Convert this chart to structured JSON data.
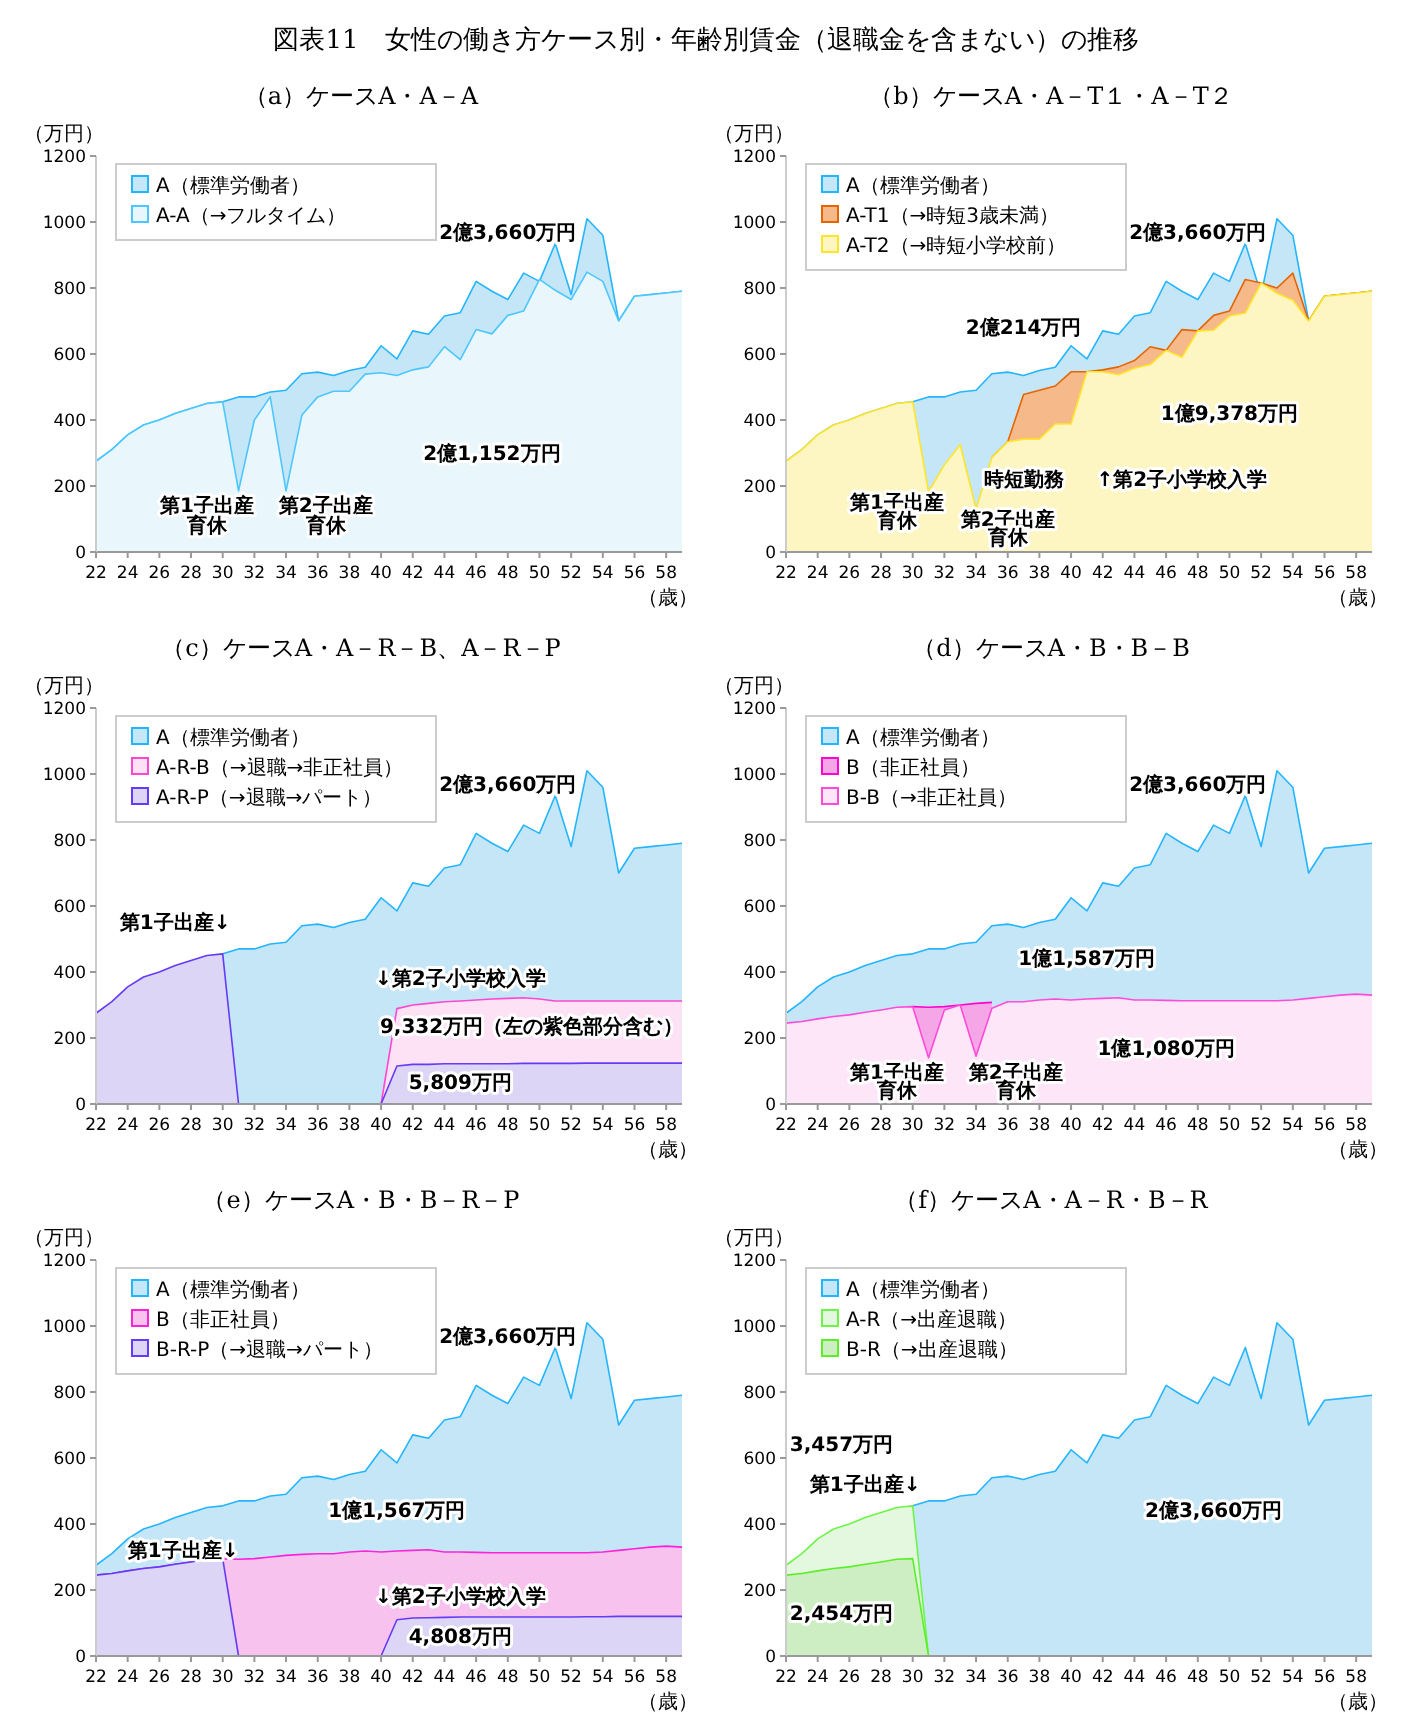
{
  "chart_data": [
    {
      "type": "area",
      "title": "（a）ケースA・A－A",
      "xlabel": "（歳）",
      "ylabel": "（万円）",
      "legend": "top left",
      "xlim": [
        22,
        59
      ],
      "ylim": [
        0,
        1200
      ],
      "xticks": [
        22,
        24,
        26,
        28,
        30,
        32,
        34,
        36,
        38,
        40,
        42,
        44,
        46,
        48,
        50,
        52,
        54,
        56,
        58
      ],
      "yticks": [
        0,
        200,
        400,
        600,
        800,
        1000,
        1200
      ],
      "x": [
        22,
        23,
        24,
        25,
        26,
        27,
        28,
        29,
        30,
        31,
        32,
        33,
        34,
        35,
        36,
        37,
        38,
        39,
        40,
        41,
        42,
        43,
        44,
        45,
        46,
        47,
        48,
        49,
        50,
        51,
        52,
        53,
        54,
        55,
        56,
        57,
        58,
        59
      ],
      "series": [
        {
          "name": "A（標準労働者）",
          "color": "#c5e6f7",
          "values": [
            275,
            310,
            355,
            385,
            400,
            420,
            435,
            450,
            455,
            470,
            470,
            485,
            490,
            540,
            545,
            535,
            550,
            560,
            625,
            585,
            670,
            660,
            715,
            725,
            820,
            790,
            765,
            845,
            820,
            935,
            780,
            1010,
            960,
            700,
            775,
            780,
            785,
            790
          ]
        },
        {
          "name": "A-A（→フルタイム）",
          "color": "#e9f6fc",
          "values": [
            275,
            310,
            355,
            385,
            400,
            420,
            435,
            450,
            455,
            185,
            400,
            470,
            185,
            415,
            470,
            487,
            487,
            539,
            543,
            535,
            552,
            561,
            622,
            583,
            674,
            661,
            717,
            730,
            826,
            793,
            765,
            848,
            820,
            700,
            775,
            780,
            785,
            790
          ]
        }
      ],
      "annotations": [
        "図表11　女性の働き方ケース別・年齢別賃金（退職金を含まない）の推移",
        "2億3,660万円",
        "2億1,152万円",
        "第1子出産",
        "育休",
        "第2子出産",
        "育休"
      ]
    },
    {
      "type": "area",
      "title": "（b）ケースA・A－T１・A－T２",
      "xlabel": "（歳）",
      "ylabel": "（万円）",
      "legend": "top left",
      "xlim": [
        22,
        59
      ],
      "ylim": [
        0,
        1200
      ],
      "xticks": [
        22,
        24,
        26,
        28,
        30,
        32,
        34,
        36,
        38,
        40,
        42,
        44,
        46,
        48,
        50,
        52,
        54,
        56,
        58
      ],
      "yticks": [
        0,
        200,
        400,
        600,
        800,
        1000,
        1200
      ],
      "x": [
        22,
        23,
        24,
        25,
        26,
        27,
        28,
        29,
        30,
        31,
        32,
        33,
        34,
        35,
        36,
        37,
        38,
        39,
        40,
        41,
        42,
        43,
        44,
        45,
        46,
        47,
        48,
        49,
        50,
        51,
        52,
        53,
        54,
        55,
        56,
        57,
        58,
        59
      ],
      "series": [
        {
          "name": "A（標準労働者）",
          "color": "#c5e6f7",
          "values": [
            275,
            310,
            355,
            385,
            400,
            420,
            435,
            450,
            455,
            470,
            470,
            485,
            490,
            540,
            545,
            535,
            550,
            560,
            625,
            585,
            670,
            660,
            715,
            725,
            820,
            790,
            765,
            845,
            820,
            935,
            780,
            1010,
            960,
            700,
            775,
            780,
            785,
            790
          ]
        },
        {
          "name": "A-T1（→時短3歳未満）",
          "color": "#f6b98a",
          "values": [
            null,
            null,
            null,
            null,
            null,
            null,
            null,
            null,
            null,
            null,
            null,
            null,
            null,
            286,
            334,
            477,
            490,
            503,
            546,
            546,
            552,
            561,
            580,
            622,
            611,
            674,
            670,
            717,
            730,
            826,
            815,
            800,
            845,
            700,
            775,
            780,
            785,
            790
          ]
        },
        {
          "name": "A-T2（→時短小学校前）",
          "color": "#fdf6c3",
          "values": [
            275,
            310,
            355,
            385,
            400,
            420,
            435,
            450,
            455,
            182,
            264,
            325,
            130,
            286,
            334,
            342,
            342,
            388,
            388,
            546,
            546,
            537,
            557,
            568,
            611,
            590,
            670,
            672,
            715,
            724,
            815,
            784,
            763,
            700,
            775,
            780,
            785,
            790
          ]
        }
      ],
      "annotations": [
        "2億3,660万円",
        "2億214万円",
        "1億9,378万円",
        "第1子出産",
        "育休",
        "第2子出産",
        "育休",
        "時短勤務",
        "↑第2子小学校入学"
      ]
    },
    {
      "type": "area",
      "title": "（c）ケースA・A－R－B、A－R－P",
      "xlabel": "（歳）",
      "ylabel": "（万円）",
      "legend": "top left",
      "xlim": [
        22,
        59
      ],
      "ylim": [
        0,
        1200
      ],
      "xticks": [
        22,
        24,
        26,
        28,
        30,
        32,
        34,
        36,
        38,
        40,
        42,
        44,
        46,
        48,
        50,
        52,
        54,
        56,
        58
      ],
      "yticks": [
        0,
        200,
        400,
        600,
        800,
        1000,
        1200
      ],
      "x": [
        22,
        23,
        24,
        25,
        26,
        27,
        28,
        29,
        30,
        31,
        32,
        33,
        34,
        35,
        36,
        37,
        38,
        39,
        40,
        41,
        42,
        43,
        44,
        45,
        46,
        47,
        48,
        49,
        50,
        51,
        52,
        53,
        54,
        55,
        56,
        57,
        58,
        59
      ],
      "series": [
        {
          "name": "A（標準労働者）",
          "color": "#c5e6f7",
          "values": [
            null,
            null,
            null,
            null,
            null,
            null,
            null,
            null,
            455,
            470,
            470,
            485,
            490,
            540,
            545,
            535,
            550,
            560,
            625,
            585,
            670,
            660,
            715,
            725,
            820,
            790,
            765,
            845,
            820,
            935,
            780,
            1010,
            960,
            700,
            775,
            780,
            785,
            790
          ]
        },
        {
          "name": "A-R-B（→退職→非正社員）",
          "color": "#fde2f6",
          "values": [
            null,
            null,
            null,
            null,
            null,
            null,
            null,
            null,
            null,
            null,
            null,
            null,
            null,
            null,
            null,
            null,
            null,
            null,
            0,
            289,
            300,
            305,
            310,
            312,
            315,
            318,
            320,
            322,
            318,
            312,
            312,
            312,
            312,
            312,
            312,
            312,
            312,
            312
          ]
        },
        {
          "name": "A-R-P（→退職→パート）",
          "color": "#dcd5f5",
          "values": [
            275,
            310,
            355,
            385,
            400,
            420,
            435,
            450,
            455,
            0,
            null,
            null,
            null,
            null,
            null,
            null,
            null,
            null,
            0,
            115,
            120,
            120,
            122,
            122,
            122,
            122,
            122,
            123,
            123,
            123,
            123,
            124,
            124,
            124,
            124,
            124,
            124,
            124
          ]
        }
      ],
      "annotations": [
        "第1子出産↓",
        "2億3,660万円",
        "↓第2子小学校入学",
        "9,332万円（左の紫色部分含む）",
        "5,809万円"
      ]
    },
    {
      "type": "area",
      "title": "（d）ケースA・B・B－B",
      "xlabel": "（歳）",
      "ylabel": "（万円）",
      "legend": "top left",
      "xlim": [
        22,
        59
      ],
      "ylim": [
        0,
        1200
      ],
      "xticks": [
        22,
        24,
        26,
        28,
        30,
        32,
        34,
        36,
        38,
        40,
        42,
        44,
        46,
        48,
        50,
        52,
        54,
        56,
        58
      ],
      "yticks": [
        0,
        200,
        400,
        600,
        800,
        1000,
        1200
      ],
      "x": [
        22,
        23,
        24,
        25,
        26,
        27,
        28,
        29,
        30,
        31,
        32,
        33,
        34,
        35,
        36,
        37,
        38,
        39,
        40,
        41,
        42,
        43,
        44,
        45,
        46,
        47,
        48,
        49,
        50,
        51,
        52,
        53,
        54,
        55,
        56,
        57,
        58,
        59
      ],
      "series": [
        {
          "name": "A（標準労働者）",
          "color": "#c5e6f7",
          "values": [
            275,
            310,
            355,
            385,
            400,
            420,
            435,
            450,
            455,
            470,
            470,
            485,
            490,
            540,
            545,
            535,
            550,
            560,
            625,
            585,
            670,
            660,
            715,
            725,
            820,
            790,
            765,
            845,
            820,
            935,
            780,
            1010,
            960,
            700,
            775,
            780,
            785,
            790
          ]
        },
        {
          "name": "B（非正社員）",
          "color": "#f5a6e6",
          "values": [
            null,
            null,
            null,
            null,
            null,
            null,
            null,
            null,
            295,
            293,
            295,
            300,
            305,
            308,
            null,
            null,
            null,
            null,
            null,
            null,
            null,
            null,
            null,
            null,
            null,
            null,
            null,
            null,
            null,
            null,
            null,
            null,
            null,
            null,
            null,
            null,
            null,
            null
          ]
        },
        {
          "name": "B-B（→非正社員）",
          "color": "#fde6f8",
          "values": [
            245,
            250,
            258,
            265,
            270,
            278,
            285,
            293,
            295,
            140,
            285,
            300,
            145,
            290,
            310,
            310,
            315,
            318,
            315,
            318,
            320,
            322,
            315,
            315,
            314,
            313,
            313,
            313,
            313,
            313,
            313,
            313,
            315,
            320,
            325,
            330,
            333,
            330
          ]
        }
      ],
      "annotations": [
        "2億3,660万円",
        "1億1,587万円",
        "1億1,080万円",
        "第1子出産",
        "育休",
        "第2子出産",
        "育休"
      ]
    },
    {
      "type": "area",
      "title": "（e）ケースA・B・B－R－P",
      "xlabel": "（歳）",
      "ylabel": "（万円）",
      "legend": "top left",
      "xlim": [
        22,
        59
      ],
      "ylim": [
        0,
        1200
      ],
      "xticks": [
        22,
        24,
        26,
        28,
        30,
        32,
        34,
        36,
        38,
        40,
        42,
        44,
        46,
        48,
        50,
        52,
        54,
        56,
        58
      ],
      "yticks": [
        0,
        200,
        400,
        600,
        800,
        1000,
        1200
      ],
      "x": [
        22,
        23,
        24,
        25,
        26,
        27,
        28,
        29,
        30,
        31,
        32,
        33,
        34,
        35,
        36,
        37,
        38,
        39,
        40,
        41,
        42,
        43,
        44,
        45,
        46,
        47,
        48,
        49,
        50,
        51,
        52,
        53,
        54,
        55,
        56,
        57,
        58,
        59
      ],
      "series": [
        {
          "name": "A（標準労働者）",
          "color": "#c5e6f7",
          "values": [
            275,
            310,
            355,
            385,
            400,
            420,
            435,
            450,
            455,
            470,
            470,
            485,
            490,
            540,
            545,
            535,
            550,
            560,
            625,
            585,
            670,
            660,
            715,
            725,
            820,
            790,
            765,
            845,
            820,
            935,
            780,
            1010,
            960,
            700,
            775,
            780,
            785,
            790
          ]
        },
        {
          "name": "B（非正社員）",
          "color": "#f7c3ee",
          "values": [
            245,
            250,
            258,
            265,
            270,
            278,
            285,
            293,
            295,
            293,
            295,
            300,
            305,
            308,
            310,
            310,
            315,
            318,
            315,
            318,
            320,
            322,
            315,
            315,
            314,
            313,
            313,
            313,
            313,
            313,
            313,
            313,
            315,
            320,
            325,
            330,
            333,
            330
          ]
        },
        {
          "name": "B-R-P（→退職→パート）",
          "color": "#dcd5f5",
          "values": [
            245,
            250,
            258,
            265,
            270,
            278,
            285,
            293,
            295,
            0,
            null,
            null,
            null,
            null,
            null,
            null,
            null,
            null,
            0,
            110,
            115,
            116,
            117,
            118,
            118,
            118,
            118,
            118,
            118,
            118,
            118,
            119,
            119,
            120,
            120,
            120,
            120,
            120
          ]
        }
      ],
      "annotations": [
        "2億3,660万円",
        "1億1,567万円",
        "第1子出産↓",
        "↓第2子小学校入学",
        "4,808万円"
      ]
    },
    {
      "type": "area",
      "title": "（f）ケースA・A－R・B－R",
      "xlabel": "（歳）",
      "ylabel": "（万円）",
      "legend": "top left",
      "xlim": [
        22,
        59
      ],
      "ylim": [
        0,
        1200
      ],
      "xticks": [
        22,
        24,
        26,
        28,
        30,
        32,
        34,
        36,
        38,
        40,
        42,
        44,
        46,
        48,
        50,
        52,
        54,
        56,
        58
      ],
      "yticks": [
        0,
        200,
        400,
        600,
        800,
        1000,
        1200
      ],
      "x": [
        22,
        23,
        24,
        25,
        26,
        27,
        28,
        29,
        30,
        31,
        32,
        33,
        34,
        35,
        36,
        37,
        38,
        39,
        40,
        41,
        42,
        43,
        44,
        45,
        46,
        47,
        48,
        49,
        50,
        51,
        52,
        53,
        54,
        55,
        56,
        57,
        58,
        59
      ],
      "series": [
        {
          "name": "A（標準労働者）",
          "color": "#c5e6f7",
          "values": [
            null,
            null,
            null,
            null,
            null,
            null,
            null,
            null,
            455,
            470,
            470,
            485,
            490,
            540,
            545,
            535,
            550,
            560,
            625,
            585,
            670,
            660,
            715,
            725,
            820,
            790,
            765,
            845,
            820,
            935,
            780,
            1010,
            960,
            700,
            775,
            780,
            785,
            790
          ]
        },
        {
          "name": "A-R（→出産退職）",
          "color": "#e4f7df",
          "values": [
            275,
            310,
            355,
            385,
            400,
            420,
            435,
            450,
            455,
            0,
            null,
            null,
            null,
            null,
            null,
            null,
            null,
            null,
            null,
            null,
            null,
            null,
            null,
            null,
            null,
            null,
            null,
            null,
            null,
            null,
            null,
            null,
            null,
            null,
            null,
            null,
            null,
            null
          ]
        },
        {
          "name": "B-R（→出産退職）",
          "color": "#cdeec2",
          "values": [
            245,
            250,
            258,
            265,
            270,
            278,
            285,
            293,
            295,
            0,
            null,
            null,
            null,
            null,
            null,
            null,
            null,
            null,
            null,
            null,
            null,
            null,
            null,
            null,
            null,
            null,
            null,
            null,
            null,
            null,
            null,
            null,
            null,
            null,
            null,
            null,
            null,
            null
          ]
        }
      ],
      "annotations": [
        "3,457万円",
        "第1子出産↓",
        "2,454万円",
        "2億3,660万円"
      ]
    }
  ]
}
